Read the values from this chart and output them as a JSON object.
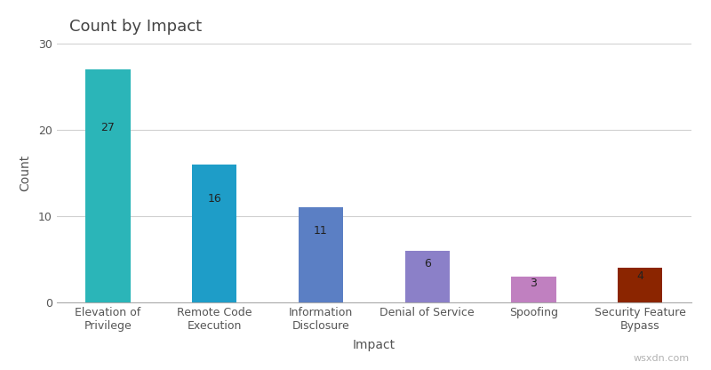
{
  "title": "Count by Impact",
  "xlabel": "Impact",
  "ylabel": "Count",
  "categories": [
    "Elevation of\nPrivilege",
    "Remote Code\nExecution",
    "Information\nDisclosure",
    "Denial of Service",
    "Spoofing",
    "Security Feature\nBypass"
  ],
  "values": [
    27,
    16,
    11,
    6,
    3,
    4
  ],
  "bar_colors": [
    "#2BB5B8",
    "#1E9DC8",
    "#5B7FC4",
    "#8B80C8",
    "#C080C0",
    "#8B2500"
  ],
  "ylim": [
    0,
    30
  ],
  "yticks": [
    0,
    10,
    20,
    30
  ],
  "background_color": "#ffffff",
  "grid_color": "#d0d0d0",
  "title_fontsize": 13,
  "axis_label_fontsize": 10,
  "tick_fontsize": 9,
  "value_label_fontsize": 9,
  "watermark": "wsxdn.com"
}
